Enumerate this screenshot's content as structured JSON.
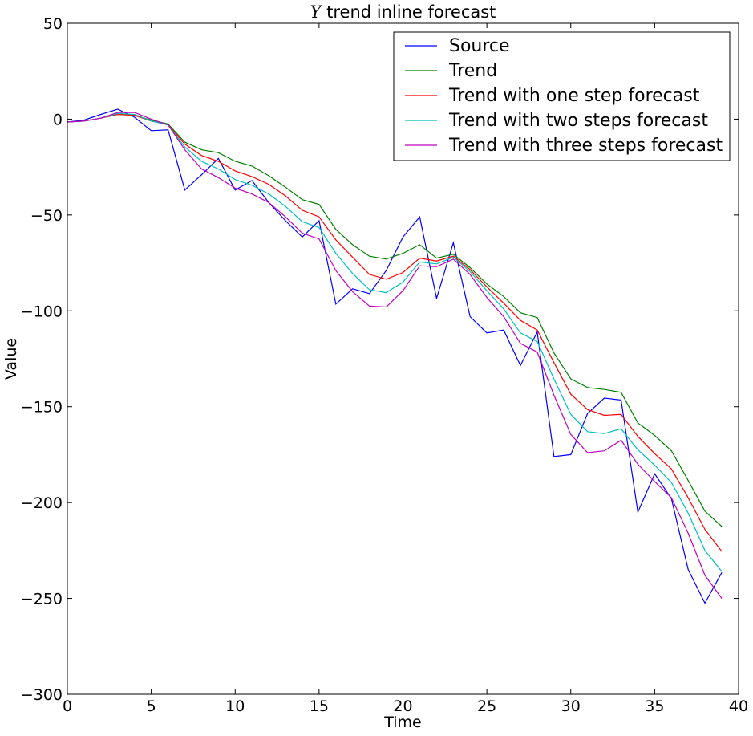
{
  "chart_data": {
    "type": "line",
    "title": "Y trend inline forecast",
    "title_italic_part": "Y",
    "title_rest": " trend inline forecast",
    "xlabel": "Time",
    "ylabel": "Value",
    "xlim": [
      0,
      40
    ],
    "ylim": [
      -300,
      50
    ],
    "xticks": [
      0,
      5,
      10,
      15,
      20,
      25,
      30,
      35,
      40
    ],
    "yticks": [
      50,
      0,
      -50,
      -100,
      -150,
      -200,
      -250,
      -300
    ],
    "ytick_labels": [
      "50",
      "0",
      "−50",
      "−100",
      "−150",
      "−200",
      "−250",
      "−300"
    ],
    "grid": false,
    "legend_position": "top-right",
    "x": [
      0,
      1,
      2,
      3,
      4,
      5,
      6,
      7,
      8,
      9,
      10,
      11,
      12,
      13,
      14,
      15,
      16,
      17,
      18,
      19,
      20,
      21,
      22,
      23,
      24,
      25,
      26,
      27,
      28,
      29,
      30,
      31,
      32,
      33,
      34,
      35,
      36,
      37,
      38,
      39
    ],
    "series": [
      {
        "name": "Source",
        "color": "#0000ff",
        "values": [
          -1.5,
          -0.5,
          2.5,
          5.2,
          1,
          -6,
          -5.6,
          -37,
          -29,
          -20.5,
          -37,
          -32,
          -43.5,
          -53,
          -61.5,
          -53,
          -96.5,
          -88.5,
          -91,
          -79,
          -61.5,
          -51,
          -93.5,
          -64.5,
          -103,
          -111.5,
          -110,
          -128.5,
          -111,
          -176,
          -175,
          -153.5,
          -145.5,
          -146.5,
          -205,
          -185,
          -198,
          -235,
          -252.5,
          -236.5
        ]
      },
      {
        "name": "Trend",
        "color": "#008000",
        "values": [
          -1.5,
          -1,
          0.5,
          2.5,
          2,
          -0.5,
          -2.5,
          -12,
          -16,
          -17.5,
          -22,
          -24.5,
          -29.5,
          -35.5,
          -42,
          -44.5,
          -57.5,
          -65.5,
          -71.5,
          -73,
          -70,
          -65.5,
          -72.5,
          -70.5,
          -77.5,
          -86,
          -92.5,
          -101,
          -103.5,
          -122,
          -135.5,
          -140,
          -141,
          -142.5,
          -158.5,
          -165,
          -173,
          -188.5,
          -204.5,
          -212.5
        ]
      },
      {
        "name": "Trend with one step forecast",
        "color": "#ff0000",
        "values": [
          -1.5,
          -1,
          0.5,
          2.5,
          2,
          -1,
          -3,
          -13,
          -19,
          -22,
          -27,
          -30,
          -34,
          -40,
          -47.5,
          -51,
          -63,
          -72,
          -81,
          -83.5,
          -80,
          -72.5,
          -74,
          -71.5,
          -78.5,
          -87.5,
          -96,
          -105,
          -110,
          -127,
          -143.5,
          -151.5,
          -154.5,
          -154,
          -165.5,
          -174.5,
          -182.5,
          -197.5,
          -214,
          -225.5
        ]
      },
      {
        "name": "Trend with two steps forecast",
        "color": "#00bfbf",
        "values": [
          -1.5,
          -1,
          0.5,
          3,
          2.5,
          -1,
          -3,
          -14.5,
          -22,
          -26,
          -31.5,
          -34.5,
          -39,
          -45.5,
          -53.5,
          -56.5,
          -70,
          -80.5,
          -89,
          -90.5,
          -85,
          -74.5,
          -75.5,
          -72,
          -79.5,
          -89.5,
          -99,
          -111.5,
          -116,
          -135.5,
          -154,
          -163,
          -164,
          -161.5,
          -172.5,
          -180.5,
          -189.5,
          -205.5,
          -225,
          -236
        ]
      },
      {
        "name": "Trend with three steps forecast",
        "color": "#bf00bf",
        "values": [
          -1.5,
          -1,
          0.5,
          3.5,
          3.5,
          0,
          -3,
          -16,
          -26,
          -30.5,
          -36,
          -39,
          -43.5,
          -51,
          -59.5,
          -62.5,
          -79,
          -90,
          -97.5,
          -98,
          -89.5,
          -76.5,
          -77,
          -73,
          -81,
          -93,
          -103,
          -117,
          -121.5,
          -144,
          -164.5,
          -174,
          -173,
          -167.5,
          -180,
          -189,
          -197.5,
          -216,
          -238,
          -250
        ]
      }
    ]
  }
}
